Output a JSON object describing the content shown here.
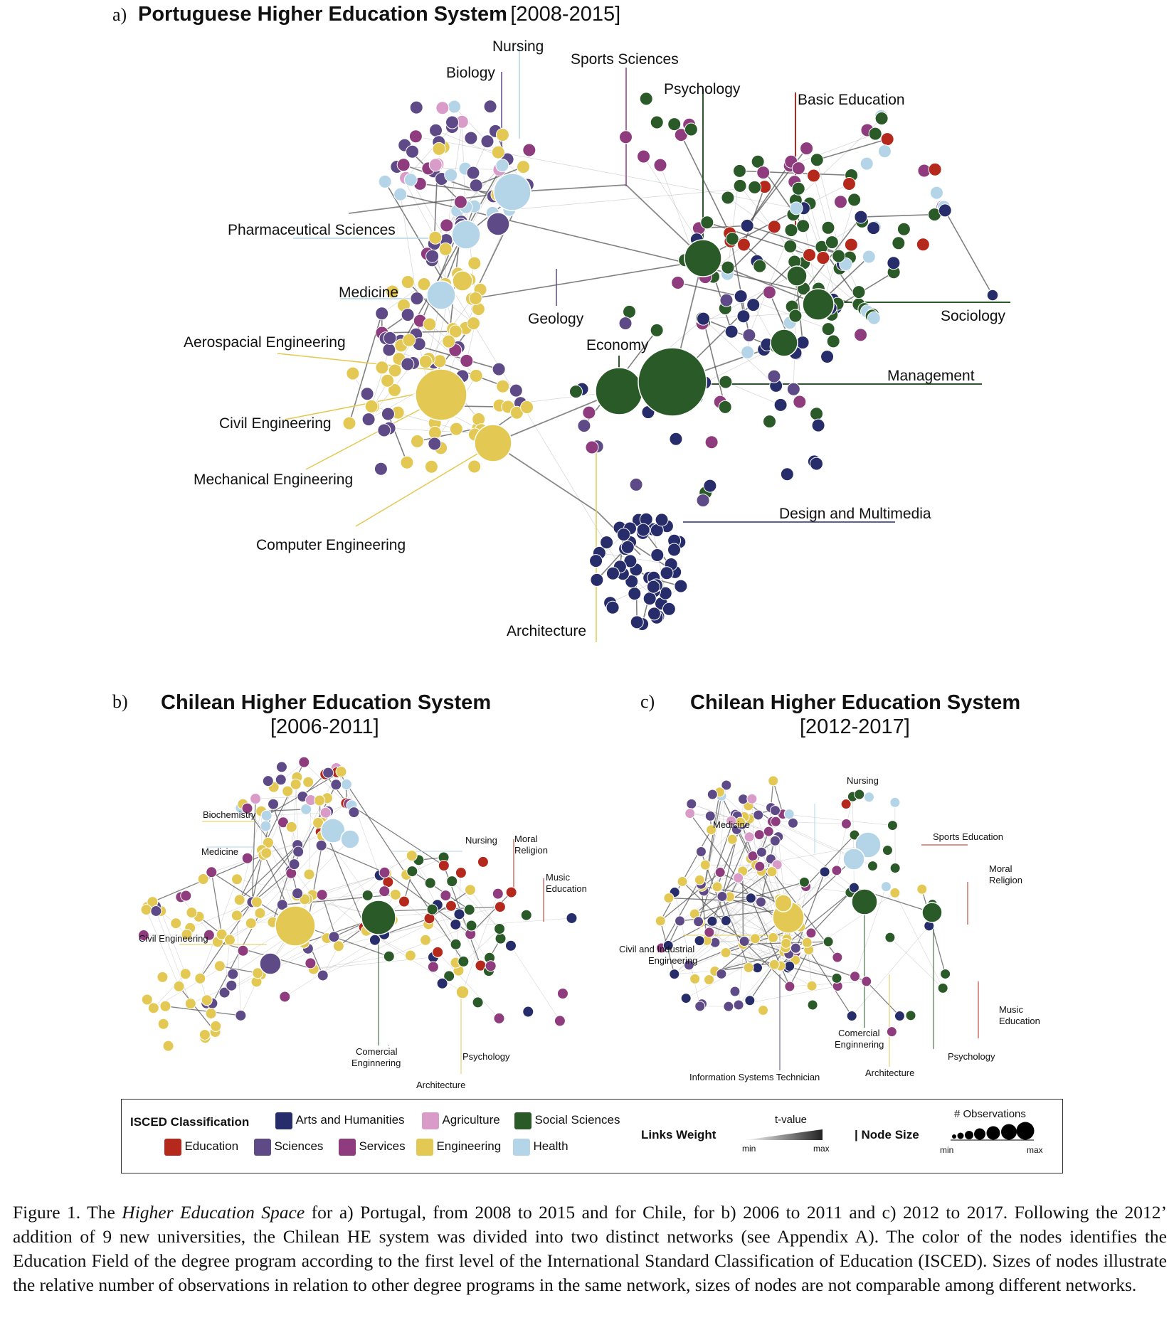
{
  "panel_a": {
    "letter": "a)",
    "title": "Portuguese Higher Education System",
    "period": "[2008-2015]",
    "labels": [
      "Nursing",
      "Biology",
      "Sports Sciences",
      "Psychology",
      "Basic Education",
      "Pharmaceutical Sciences",
      "Medicine",
      "Geology",
      "Sociology",
      "Aerospacial Engineering",
      "Economy",
      "Management",
      "Civil Engineering",
      "Mechanical Engineering",
      "Design and Multimedia",
      "Computer Engineering",
      "Architecture"
    ]
  },
  "panel_b": {
    "letter": "b)",
    "title": "Chilean Higher Education System",
    "period": "[2006-2011]",
    "labels": [
      "Biochemistry",
      "Medicine",
      "Nursing",
      "Moral",
      "Religion",
      "Music",
      "Education",
      "Civil Engineering",
      "Comercial",
      "Enginnering",
      "Psychology",
      "Architecture"
    ]
  },
  "panel_c": {
    "letter": "c)",
    "title": "Chilean Higher Education System",
    "period": "[2012-2017]",
    "labels": [
      "Nursing",
      "Medicine",
      "Sports Education",
      "Moral",
      "Religion",
      "Civil and Industrial",
      "Engineering",
      "Music",
      "Education",
      "Comercial",
      "Enginnering",
      "Architecture",
      "Psychology",
      "Information Systems Technician"
    ]
  },
  "legend": {
    "isced_title": "ISCED Classification",
    "categories": [
      {
        "name": "Arts and Humanities",
        "color": "#262d6a"
      },
      {
        "name": "Agriculture",
        "color": "#d99cc9"
      },
      {
        "name": "Social Sciences",
        "color": "#2a5a27"
      },
      {
        "name": "Education",
        "color": "#b5281c"
      },
      {
        "name": "Sciences",
        "color": "#5e4a87"
      },
      {
        "name": "Services",
        "color": "#8e3c7e"
      },
      {
        "name": "Engineering",
        "color": "#e3c953"
      },
      {
        "name": "Health",
        "color": "#b4d4e8"
      }
    ],
    "links_weight": "Links Weight",
    "tvalue": "t-value",
    "min": "min",
    "max": "max",
    "node_size": "| Node Size",
    "observations": "# Observations",
    "min2": "min",
    "max2": "max"
  },
  "caption": {
    "p1": "Figure 1.  The ",
    "italic": "Higher Education Space",
    "p2": " for a) Portugal, from 2008 to 2015 and for Chile, for b) 2006 to 2011 and c) 2012 to 2017.  Following the 2012’ addition of 9 new universities, the Chilean HE system was divided into two distinct networks (see Appendix A).  The color of the nodes identifies the Education Field of the degree program according to the first level of the International Standard Classification of Education (ISCED). Sizes of nodes illustrate the relative number of observations in relation to other degree programs in the same network, sizes of nodes are not comparable among different networks."
  }
}
